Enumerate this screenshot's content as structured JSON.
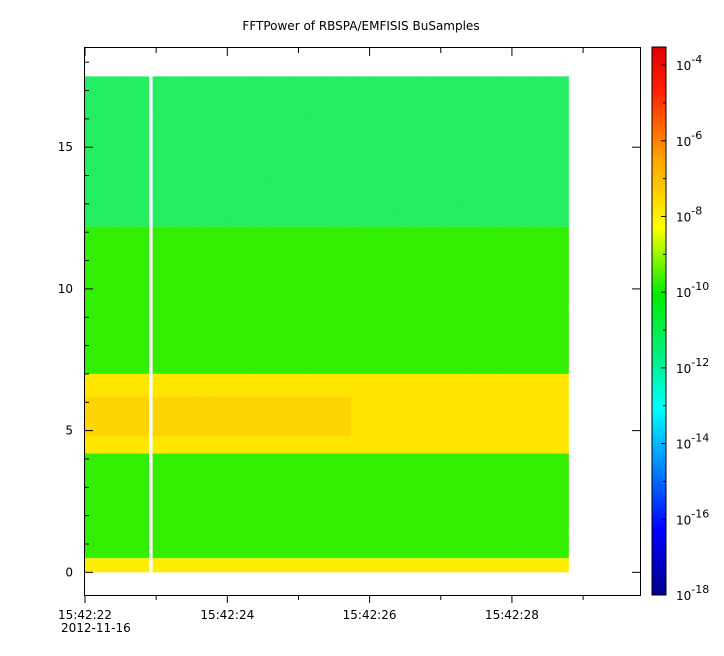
{
  "chart_data": {
    "type": "heatmap",
    "title": "FFTPower of RBSPA/EMFISIS  BuSamples",
    "xlabel": "",
    "ylabel": "",
    "x_range": [
      "2012-11-16 15:42:22",
      "2012-11-16 15:42:28.8"
    ],
    "y_range": [
      -0.8,
      18.5
    ],
    "x_tick_labels": [
      "15:42:22",
      "15:42:24",
      "15:42:26",
      "15:42:28"
    ],
    "x_tick_seconds": [
      22,
      24,
      26,
      28
    ],
    "x_minor_tick_seconds": [
      23,
      25,
      27,
      29
    ],
    "x_start_date": "2012-11-16",
    "y_ticks": [
      0,
      5,
      10,
      15
    ],
    "y_tick_labels": [
      "0",
      "5",
      "10",
      "15"
    ],
    "data_extent": {
      "x_seconds": [
        22,
        28.8
      ],
      "y": [
        0,
        17.5
      ]
    },
    "data_gap_seconds": [
      22.9,
      22.95
    ],
    "colorbar": {
      "scale": "log",
      "range": [
        1e-18,
        0.0003
      ],
      "tick_exponents": [
        -4,
        -6,
        -8,
        -10,
        -12,
        -14,
        -16,
        -18
      ],
      "tick_base": "10",
      "tick_labels": [
        "-4",
        "-6",
        "-8",
        "-10",
        "-12",
        "-14",
        "-16",
        "-18"
      ],
      "colors": [
        "#00008b",
        "#0000ff",
        "#0080ff",
        "#00ffff",
        "#00ff80",
        "#00ff00",
        "#ffff00",
        "#ff8000",
        "#ff0000",
        "#dd0000"
      ]
    },
    "bands": [
      {
        "y_from": 0.0,
        "y_to": 0.5,
        "level": "high",
        "color": "#ffee00"
      },
      {
        "y_from": 0.5,
        "y_to": 4.2,
        "level": "medium",
        "color": "#33ee00"
      },
      {
        "y_from": 4.2,
        "y_to": 7.0,
        "level": "high",
        "color": "#ffe600"
      },
      {
        "y_from": 7.0,
        "y_to": 12.2,
        "level": "medium",
        "color": "#33ee00"
      },
      {
        "y_from": 12.2,
        "y_to": 17.5,
        "level": "low",
        "color": "#22ee66"
      }
    ],
    "grid": false
  }
}
